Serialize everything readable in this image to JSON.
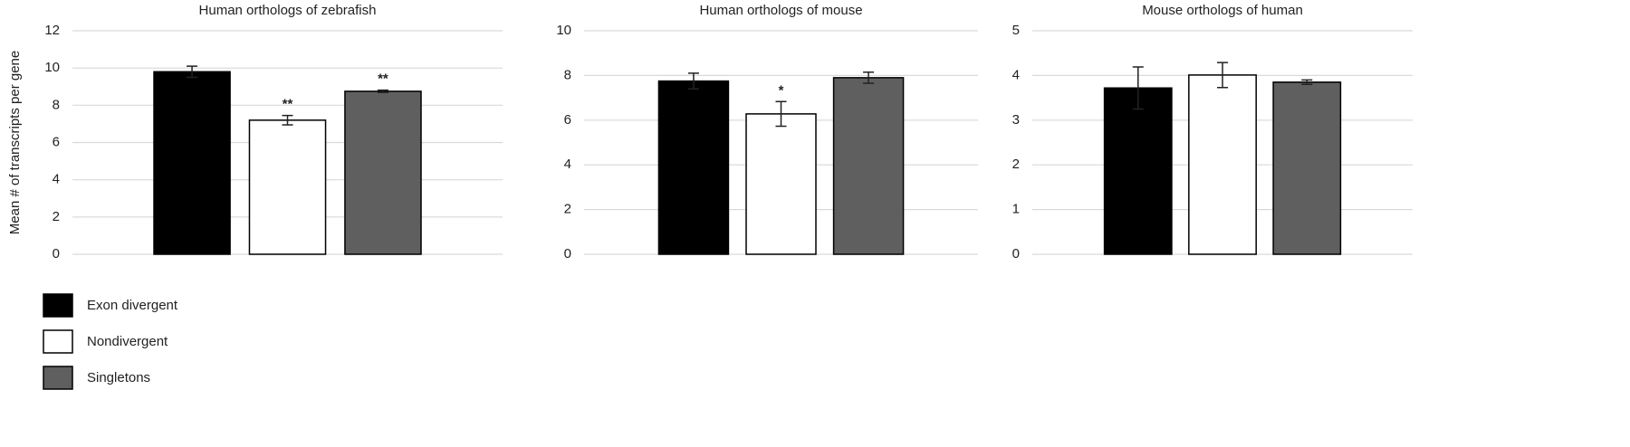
{
  "legend": [
    {
      "name": "Exon divergent",
      "color": "#000000"
    },
    {
      "name": "Nondivergent",
      "color": "#ffffff"
    },
    {
      "name": "Singletons",
      "color": "#5f5f5f"
    }
  ],
  "chart_data": [
    {
      "type": "bar",
      "title": "Human orthologs of zebrafish",
      "ylabel": "Mean # of transcripts per gene",
      "values": [
        9.8,
        7.2,
        8.75
      ],
      "errors": [
        0.3,
        0.25,
        0.06
      ],
      "significance": [
        null,
        "**",
        "**"
      ],
      "ylim": [
        0,
        12
      ],
      "yticks": [
        0,
        2,
        4,
        6,
        8,
        10,
        12
      ],
      "grid": true
    },
    {
      "type": "bar",
      "title": "Human orthologs of mouse",
      "values": [
        7.75,
        6.28,
        7.9
      ],
      "errors": [
        0.35,
        0.55,
        0.25
      ],
      "significance": [
        null,
        "*",
        null
      ],
      "ylim": [
        0,
        10
      ],
      "yticks": [
        0,
        2,
        4,
        6,
        8,
        10
      ],
      "grid": true
    },
    {
      "type": "bar",
      "title": "Mouse orthologs of human",
      "values": [
        3.72,
        4.01,
        3.85
      ],
      "errors": [
        0.47,
        0.28,
        0.05
      ],
      "significance": [
        null,
        null,
        null
      ],
      "ylim": [
        0,
        5
      ],
      "yticks": [
        0,
        1,
        2,
        3,
        4,
        5
      ],
      "grid": true
    }
  ]
}
